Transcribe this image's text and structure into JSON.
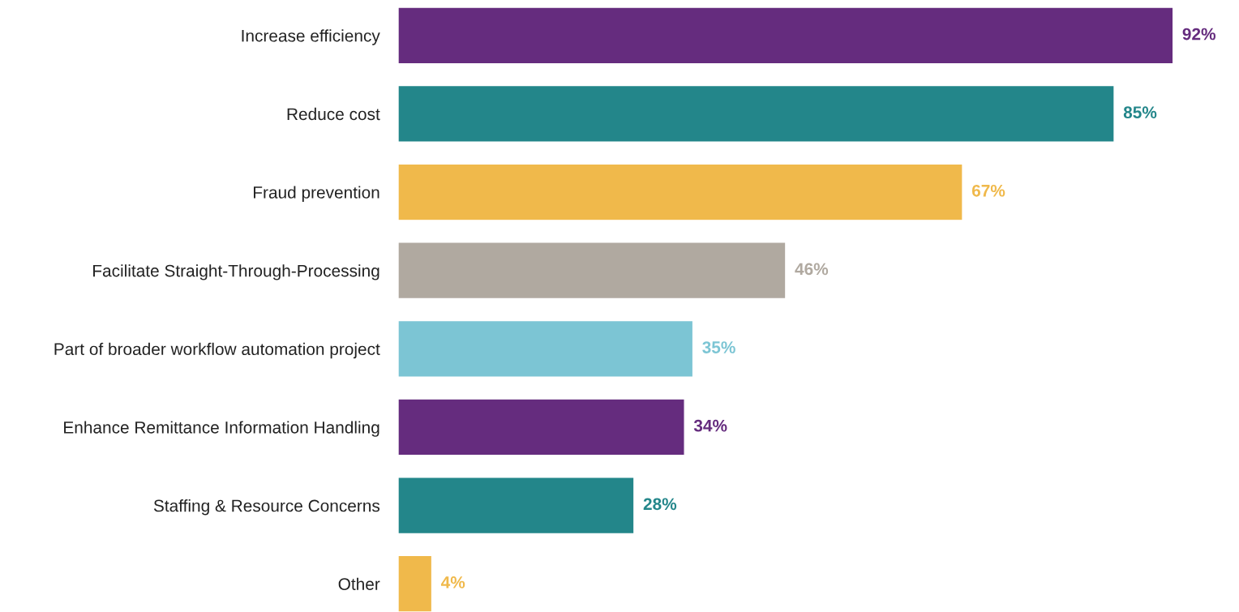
{
  "chart_data": {
    "type": "bar",
    "orientation": "horizontal",
    "categories": [
      "Increase efficiency",
      "Reduce cost",
      "Fraud prevention",
      "Facilitate Straight-Through-Processing",
      "Part of broader workflow automation project",
      "Enhance Remittance Information Handling",
      "Staffing & Resource Concerns",
      "Other"
    ],
    "values": [
      92,
      85,
      67,
      46,
      35,
      34,
      28,
      4
    ],
    "colors": [
      "#652c7e",
      "#23868a",
      "#f0b94b",
      "#b0a9a0",
      "#7cc5d4",
      "#652c7e",
      "#23868a",
      "#f0b94b"
    ],
    "value_labels": [
      "92%",
      "85%",
      "67%",
      "46%",
      "35%",
      "34%",
      "28%",
      "4%"
    ],
    "grid": false,
    "legend": false
  }
}
